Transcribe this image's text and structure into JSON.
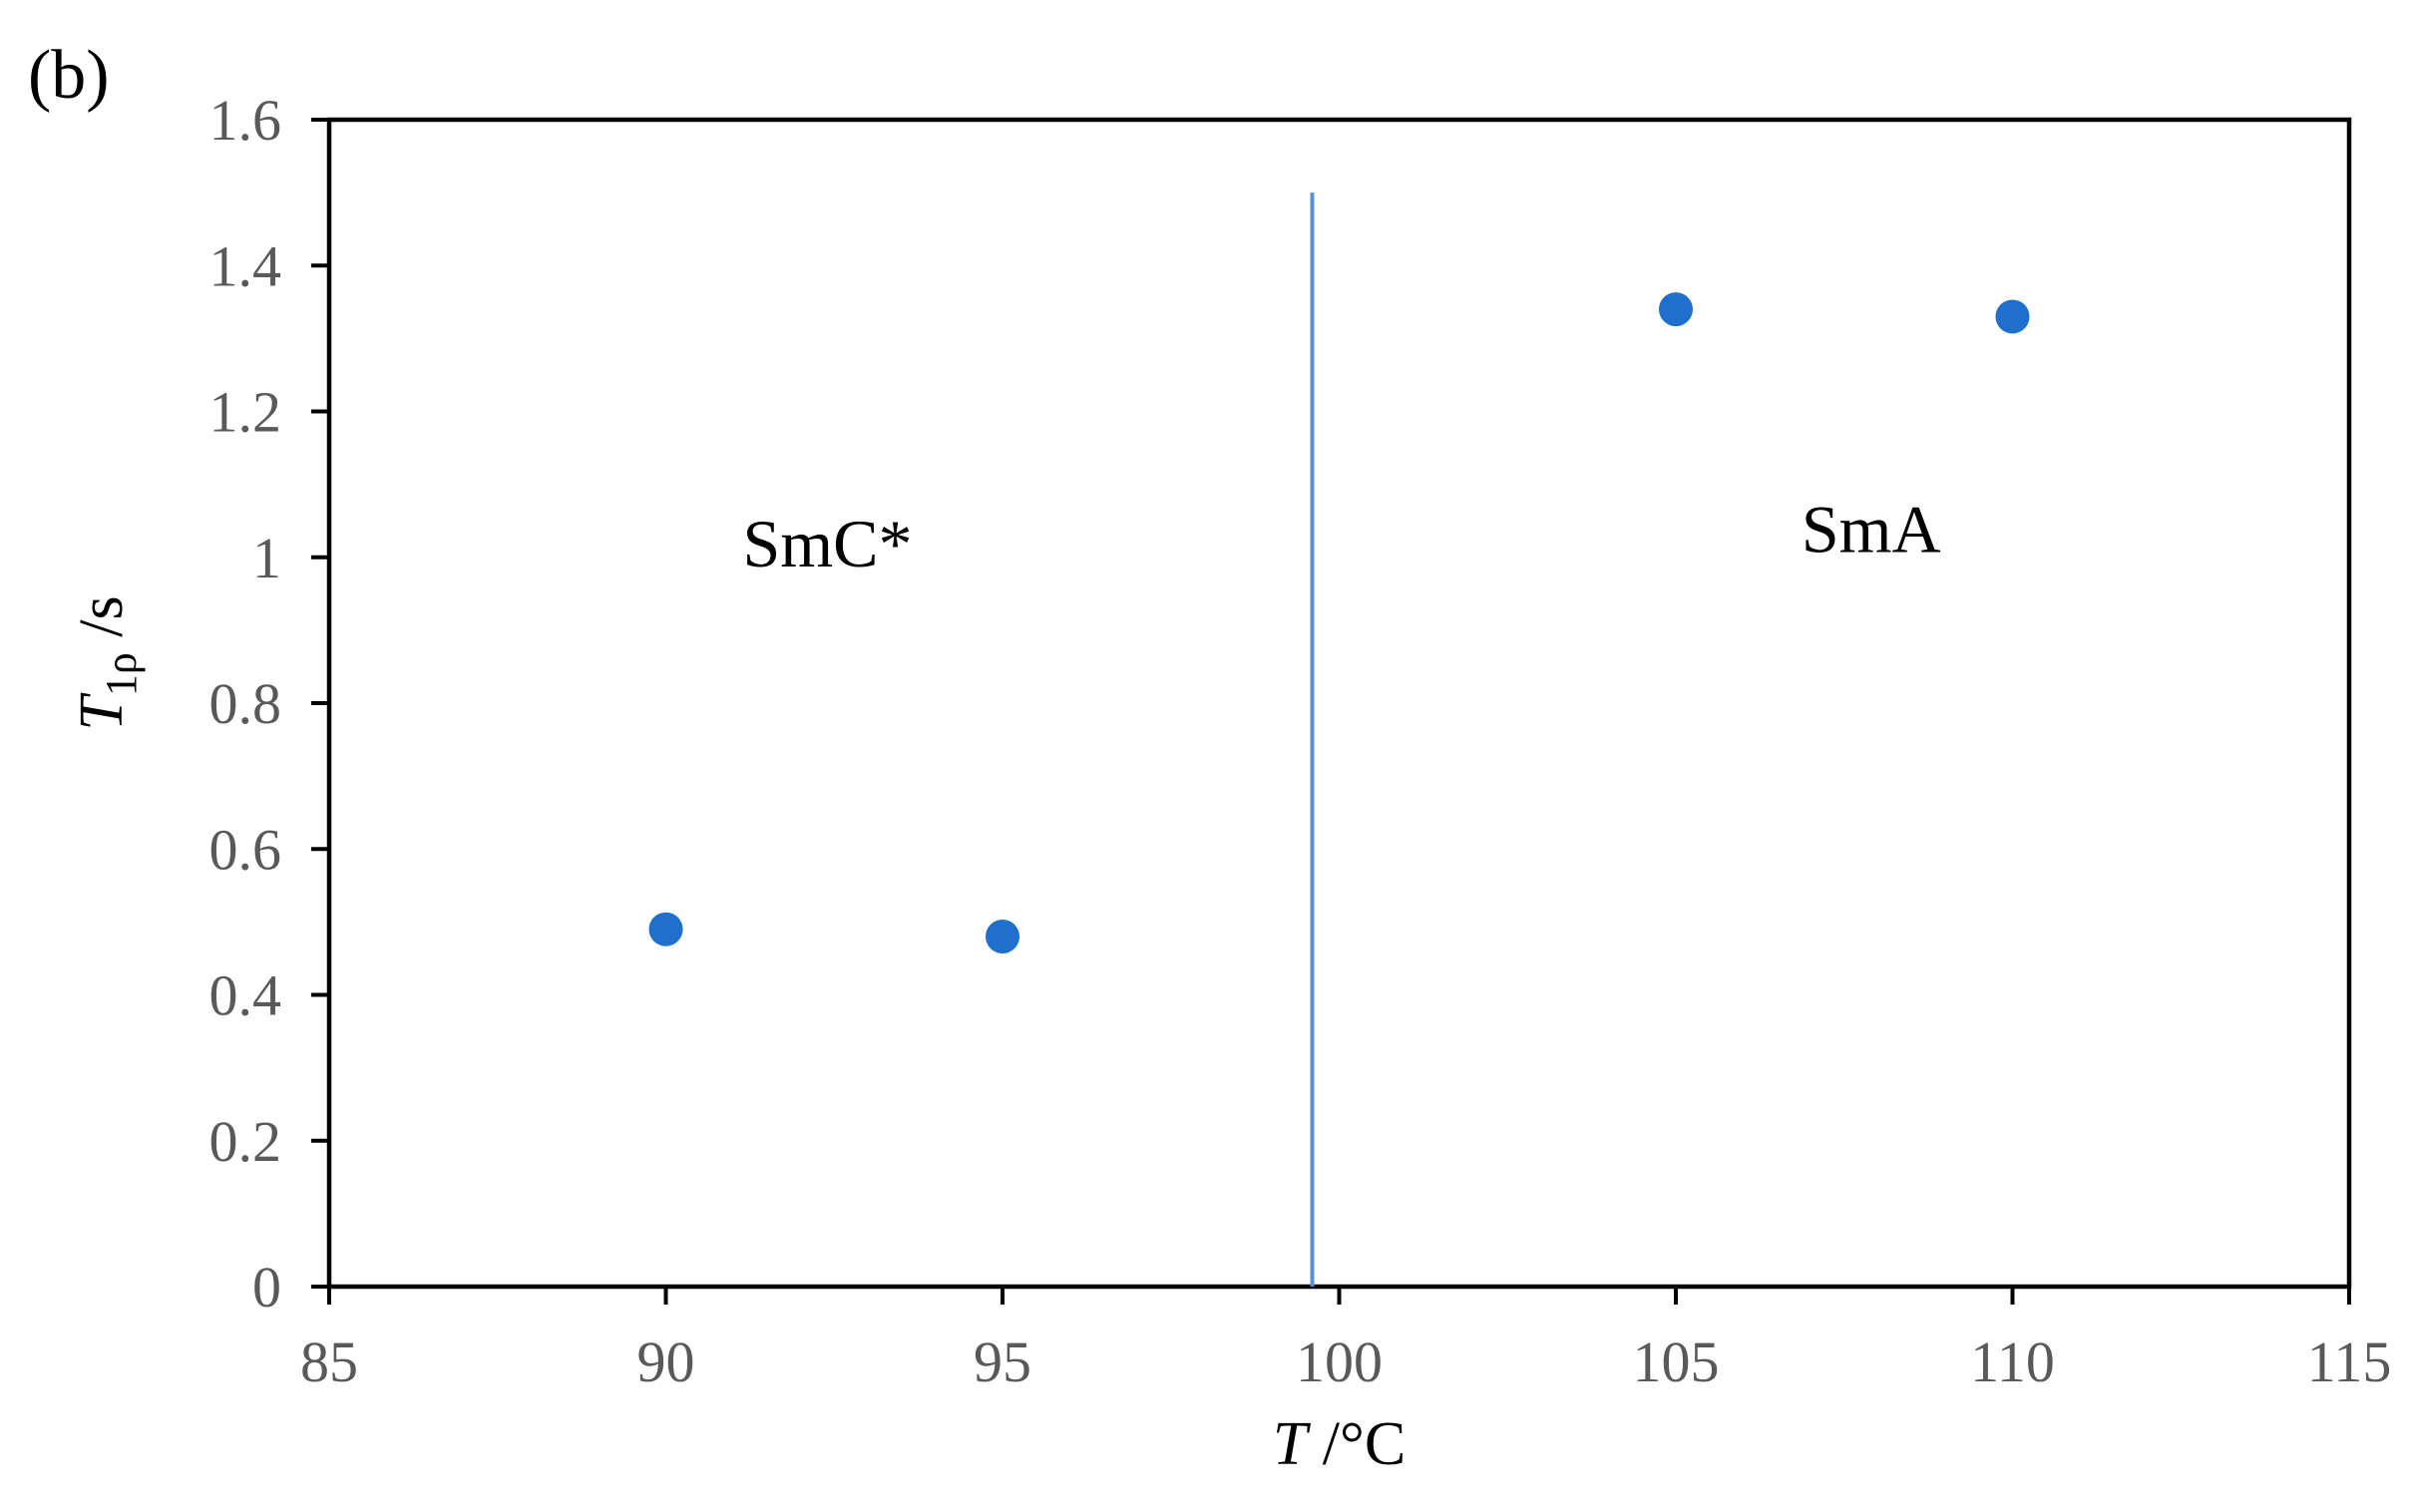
{
  "chart_data": {
    "type": "scatter",
    "panel_label": "(b)",
    "xlabel": {
      "symbol": "T",
      "unit": " /°C"
    },
    "ylabel": {
      "symbol": "T",
      "subscript": "1ρ",
      "unit": " /s"
    },
    "xlim": [
      85,
      115
    ],
    "ylim": [
      0,
      1.6
    ],
    "x_ticks": [
      85,
      90,
      95,
      100,
      105,
      110,
      115
    ],
    "y_ticks": [
      0,
      0.2,
      0.4,
      0.6,
      0.8,
      1,
      1.2,
      1.4,
      1.6
    ],
    "x_tick_labels": [
      "85",
      "90",
      "95",
      "100",
      "105",
      "110",
      "115"
    ],
    "y_tick_labels": [
      "0",
      "0.2",
      "0.4",
      "0.6",
      "0.8",
      "1",
      "1.2",
      "1.4",
      "1.6"
    ],
    "grid": false,
    "legend": "none",
    "series": [
      {
        "color": "#1f6fcc",
        "points": [
          {
            "x": 90,
            "y": 0.49
          },
          {
            "x": 95,
            "y": 0.48
          },
          {
            "x": 105,
            "y": 1.34
          },
          {
            "x": 110,
            "y": 1.33
          }
        ]
      }
    ],
    "reference_lines": [
      {
        "orientation": "vertical",
        "x": 99.6,
        "y_from": 0,
        "y_to": 1.5,
        "color": "#5b8fd6"
      }
    ],
    "annotations": [
      {
        "text": "SmC*",
        "x": 92.4,
        "y": 1.02
      },
      {
        "text": "SmA",
        "x": 107.9,
        "y": 1.04
      }
    ],
    "colors": {
      "axis": "#000000",
      "tick_label": "#595959",
      "marker": "#1f6fcc",
      "divider": "#5b8fd6"
    }
  }
}
